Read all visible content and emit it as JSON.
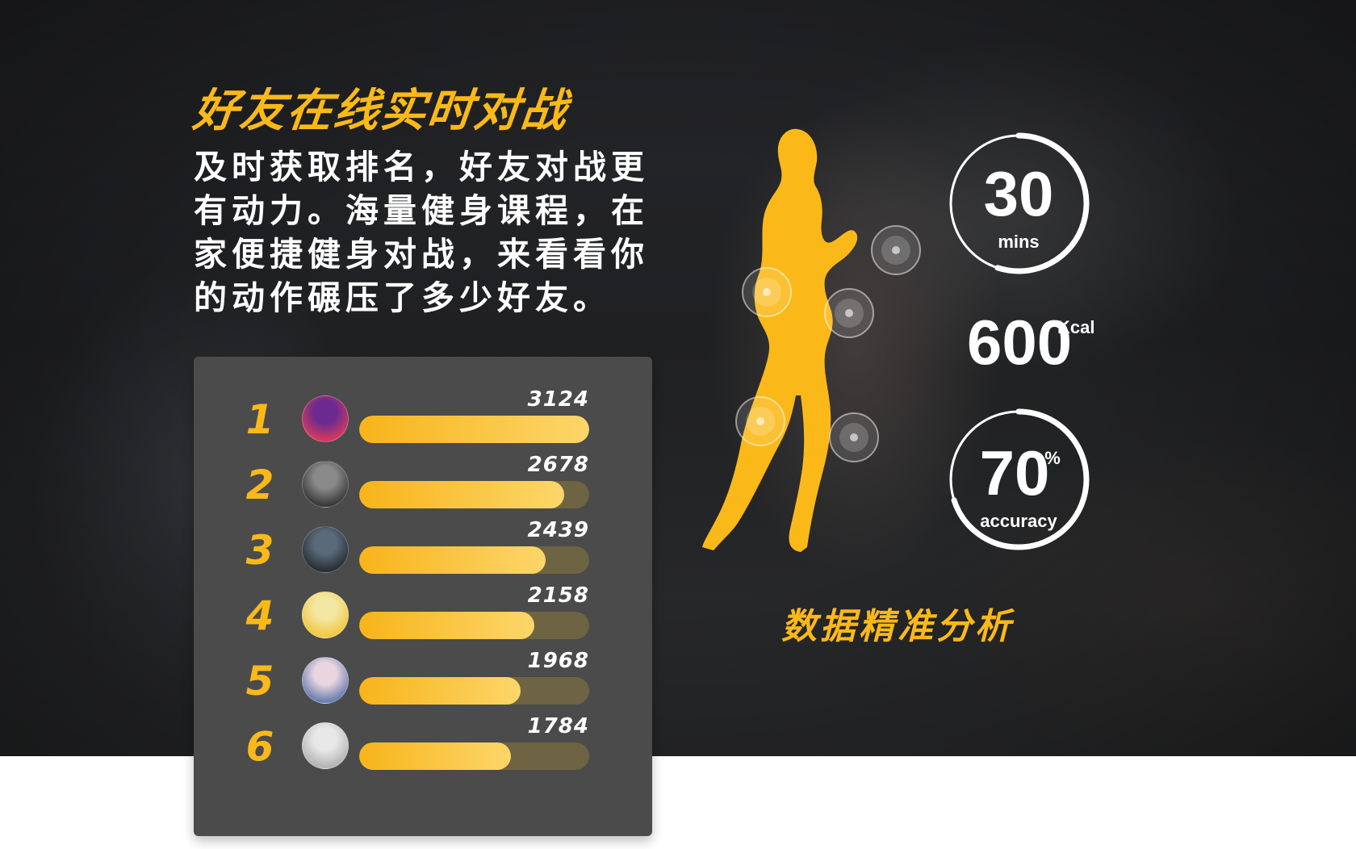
{
  "headline": "好友在线实时对战",
  "description": "及时获取排名，好友对战更有动力。海量健身课程，在家便捷健身对战，来看看你的动作碾压了多少好友。",
  "accent_color": "#fbb919",
  "leaderboard": [
    {
      "rank": "1",
      "score": "3124",
      "progress": 1.0,
      "avatar": "avatar-icon"
    },
    {
      "rank": "2",
      "score": "2678",
      "progress": 0.89,
      "avatar": "avatar-icon"
    },
    {
      "rank": "3",
      "score": "2439",
      "progress": 0.81,
      "avatar": "avatar-icon"
    },
    {
      "rank": "4",
      "score": "2158",
      "progress": 0.76,
      "avatar": "avatar-icon"
    },
    {
      "rank": "5",
      "score": "1968",
      "progress": 0.7,
      "avatar": "avatar-icon"
    },
    {
      "rank": "6",
      "score": "1784",
      "progress": 0.66,
      "avatar": "avatar-icon"
    }
  ],
  "stats": {
    "time": {
      "value": "30",
      "unit": "mins",
      "ring_fraction": 0.55
    },
    "calories": {
      "value": "600",
      "unit": "Kcal"
    },
    "accuracy": {
      "value": "70",
      "unit": "%",
      "label": "accuracy",
      "ring_fraction": 0.7
    }
  },
  "caption": "数据精准分析"
}
